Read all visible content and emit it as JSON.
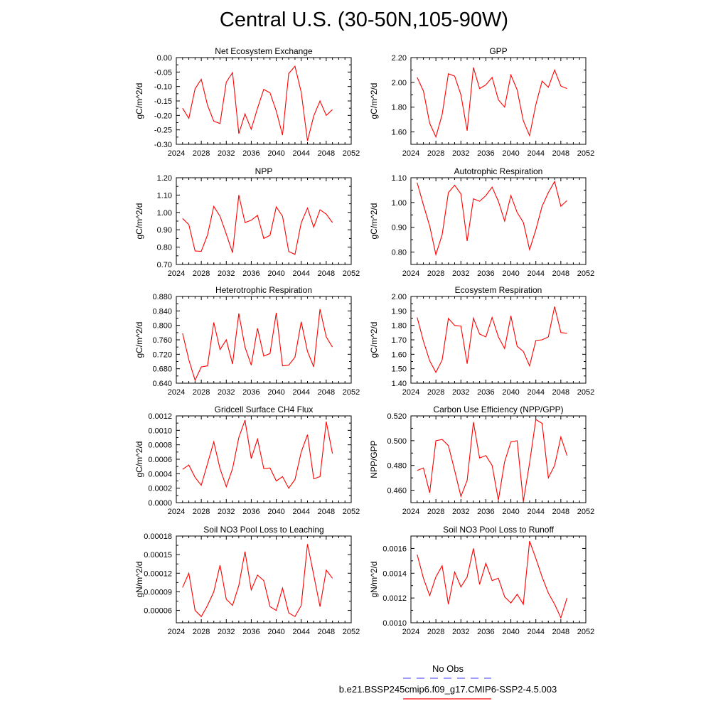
{
  "title": "Central U.S. (30-50N,105-90W)",
  "chart_data": [
    {
      "type": "line",
      "title": "Net Ecosystem Exchange",
      "ylabel": "gC/m^2/d",
      "xlim": [
        2024,
        2052
      ],
      "xticks": [
        2024,
        2028,
        2032,
        2036,
        2040,
        2044,
        2048,
        2052
      ],
      "ylim": [
        -0.3,
        0.0
      ],
      "yticks": [
        0.0,
        -0.05,
        -0.1,
        -0.15,
        -0.2,
        -0.25,
        -0.3
      ],
      "ytick_labels": [
        "0.00",
        "-0.05",
        "-0.10",
        "-0.15",
        "-0.20",
        "-0.25",
        "-0.30"
      ],
      "x": [
        2025,
        2026,
        2027,
        2028,
        2029,
        2030,
        2031,
        2032,
        2033,
        2034,
        2035,
        2036,
        2037,
        2038,
        2039,
        2040,
        2041,
        2042,
        2043,
        2044,
        2045,
        2046,
        2047,
        2048,
        2049
      ],
      "series": [
        {
          "color": "#ff0000",
          "values": [
            -0.175,
            -0.21,
            -0.108,
            -0.075,
            -0.165,
            -0.22,
            -0.228,
            -0.085,
            -0.052,
            -0.263,
            -0.195,
            -0.248,
            -0.175,
            -0.11,
            -0.122,
            -0.185,
            -0.268,
            -0.055,
            -0.03,
            -0.12,
            -0.288,
            -0.202,
            -0.15,
            -0.2,
            -0.18
          ]
        }
      ]
    },
    {
      "type": "line",
      "title": "GPP",
      "ylabel": "gC/m^2/d",
      "xlim": [
        2024,
        2052
      ],
      "xticks": [
        2024,
        2028,
        2032,
        2036,
        2040,
        2044,
        2048,
        2052
      ],
      "ylim": [
        1.5,
        2.2
      ],
      "yticks": [
        2.2,
        2.0,
        1.8,
        1.6
      ],
      "ytick_labels": [
        "2.20",
        "2.00",
        "1.80",
        "1.60"
      ],
      "x": [
        2025,
        2026,
        2027,
        2028,
        2029,
        2030,
        2031,
        2032,
        2033,
        2034,
        2035,
        2036,
        2037,
        2038,
        2039,
        2040,
        2041,
        2042,
        2043,
        2044,
        2045,
        2046,
        2047,
        2048,
        2049
      ],
      "series": [
        {
          "color": "#ff0000",
          "values": [
            2.04,
            1.93,
            1.67,
            1.56,
            1.74,
            2.07,
            2.05,
            1.9,
            1.61,
            2.12,
            1.95,
            1.98,
            2.04,
            1.86,
            1.8,
            2.06,
            1.94,
            1.69,
            1.57,
            1.82,
            2.01,
            1.96,
            2.1,
            1.97,
            1.95
          ]
        }
      ]
    },
    {
      "type": "line",
      "title": "NPP",
      "ylabel": "gC/m^2/d",
      "xlim": [
        2024,
        2052
      ],
      "xticks": [
        2024,
        2028,
        2032,
        2036,
        2040,
        2044,
        2048,
        2052
      ],
      "ylim": [
        0.7,
        1.2
      ],
      "yticks": [
        1.2,
        1.1,
        1.0,
        0.9,
        0.8,
        0.7
      ],
      "ytick_labels": [
        "1.20",
        "1.10",
        "1.00",
        "0.90",
        "0.80",
        "0.70"
      ],
      "x": [
        2025,
        2026,
        2027,
        2028,
        2029,
        2030,
        2031,
        2032,
        2033,
        2034,
        2035,
        2036,
        2037,
        2038,
        2039,
        2040,
        2041,
        2042,
        2043,
        2044,
        2045,
        2046,
        2047,
        2048,
        2049
      ],
      "series": [
        {
          "color": "#ff0000",
          "values": [
            0.965,
            0.93,
            0.778,
            0.776,
            0.87,
            1.035,
            0.978,
            0.875,
            0.768,
            1.1,
            0.942,
            0.955,
            0.983,
            0.85,
            0.868,
            1.032,
            0.978,
            0.775,
            0.758,
            0.94,
            1.025,
            0.915,
            1.015,
            0.99,
            0.942
          ]
        }
      ]
    },
    {
      "type": "line",
      "title": "Autotrophic Respiration",
      "ylabel": "gC/m^2/d",
      "xlim": [
        2024,
        2052
      ],
      "xticks": [
        2024,
        2028,
        2032,
        2036,
        2040,
        2044,
        2048,
        2052
      ],
      "ylim": [
        0.75,
        1.1
      ],
      "yticks": [
        1.1,
        1.0,
        0.9,
        0.8
      ],
      "ytick_labels": [
        "1.10",
        "1.00",
        "0.90",
        "0.80"
      ],
      "x": [
        2025,
        2026,
        2027,
        2028,
        2029,
        2030,
        2031,
        2032,
        2033,
        2034,
        2035,
        2036,
        2037,
        2038,
        2039,
        2040,
        2041,
        2042,
        2043,
        2044,
        2045,
        2046,
        2047,
        2048,
        2049
      ],
      "series": [
        {
          "color": "#ff0000",
          "values": [
            1.08,
            0.99,
            0.905,
            0.79,
            0.87,
            1.04,
            1.07,
            1.035,
            0.845,
            1.015,
            1.005,
            1.028,
            1.062,
            1.005,
            0.925,
            1.028,
            0.96,
            0.92,
            0.81,
            0.89,
            0.985,
            1.04,
            1.085,
            0.985,
            1.008
          ]
        }
      ]
    },
    {
      "type": "line",
      "title": "Heterotrophic Respiration",
      "ylabel": "gC/m^2/d",
      "xlim": [
        2024,
        2052
      ],
      "xticks": [
        2024,
        2028,
        2032,
        2036,
        2040,
        2044,
        2048,
        2052
      ],
      "ylim": [
        0.64,
        0.88
      ],
      "yticks": [
        0.88,
        0.84,
        0.8,
        0.76,
        0.72,
        0.68,
        0.64
      ],
      "ytick_labels": [
        "0.880",
        "0.840",
        "0.800",
        "0.760",
        "0.720",
        "0.680",
        "0.640"
      ],
      "x": [
        2025,
        2026,
        2027,
        2028,
        2029,
        2030,
        2031,
        2032,
        2033,
        2034,
        2035,
        2036,
        2037,
        2038,
        2039,
        2040,
        2041,
        2042,
        2043,
        2044,
        2045,
        2046,
        2047,
        2048,
        2049
      ],
      "series": [
        {
          "color": "#ff0000",
          "values": [
            0.778,
            0.705,
            0.648,
            0.685,
            0.688,
            0.808,
            0.733,
            0.76,
            0.693,
            0.833,
            0.74,
            0.69,
            0.792,
            0.715,
            0.722,
            0.835,
            0.688,
            0.69,
            0.712,
            0.81,
            0.728,
            0.685,
            0.845,
            0.768,
            0.74
          ]
        }
      ]
    },
    {
      "type": "line",
      "title": "Ecosystem Respiration",
      "ylabel": "gC/m^2/d",
      "xlim": [
        2024,
        2052
      ],
      "xticks": [
        2024,
        2028,
        2032,
        2036,
        2040,
        2044,
        2048,
        2052
      ],
      "ylim": [
        1.4,
        2.0
      ],
      "yticks": [
        2.0,
        1.9,
        1.8,
        1.7,
        1.6,
        1.5,
        1.4
      ],
      "ytick_labels": [
        "2.00",
        "1.90",
        "1.80",
        "1.70",
        "1.60",
        "1.50",
        "1.40"
      ],
      "x": [
        2025,
        2026,
        2027,
        2028,
        2029,
        2030,
        2031,
        2032,
        2033,
        2034,
        2035,
        2036,
        2037,
        2038,
        2039,
        2040,
        2041,
        2042,
        2043,
        2044,
        2045,
        2046,
        2047,
        2048,
        2049
      ],
      "series": [
        {
          "color": "#ff0000",
          "values": [
            1.855,
            1.69,
            1.555,
            1.475,
            1.56,
            1.848,
            1.8,
            1.795,
            1.535,
            1.85,
            1.74,
            1.72,
            1.855,
            1.72,
            1.64,
            1.865,
            1.655,
            1.62,
            1.52,
            1.695,
            1.7,
            1.72,
            1.93,
            1.75,
            1.745
          ]
        }
      ]
    },
    {
      "type": "line",
      "title": "Gridcell Surface CH4 Flux",
      "ylabel": "gC/m^2/d",
      "xlim": [
        2024,
        2052
      ],
      "xticks": [
        2024,
        2028,
        2032,
        2036,
        2040,
        2044,
        2048,
        2052
      ],
      "ylim": [
        0.0,
        0.0012
      ],
      "yticks": [
        0.0012,
        0.001,
        0.0008,
        0.0006,
        0.0004,
        0.0002,
        0.0
      ],
      "ytick_labels": [
        "0.0012",
        "0.0010",
        "0.0008",
        "0.0006",
        "0.0004",
        "0.0002",
        "0.0000"
      ],
      "x": [
        2025,
        2026,
        2027,
        2028,
        2029,
        2030,
        2031,
        2032,
        2033,
        2034,
        2035,
        2036,
        2037,
        2038,
        2039,
        2040,
        2041,
        2042,
        2043,
        2044,
        2045,
        2046,
        2047,
        2048,
        2049
      ],
      "series": [
        {
          "color": "#ff0000",
          "values": [
            0.00046,
            0.00052,
            0.00035,
            0.00024,
            0.00054,
            0.00084,
            0.00047,
            0.00022,
            0.00047,
            0.0009,
            0.00114,
            0.00061,
            0.00088,
            0.00047,
            0.00048,
            0.0003,
            0.00036,
            0.0002,
            0.00032,
            0.0007,
            0.00094,
            0.00033,
            0.00036,
            0.00112,
            0.00068
          ]
        }
      ]
    },
    {
      "type": "line",
      "title": "Carbon Use Efficiency (NPP/GPP)",
      "ylabel": "NPP/GPP",
      "xlim": [
        2024,
        2052
      ],
      "xticks": [
        2024,
        2028,
        2032,
        2036,
        2040,
        2044,
        2048,
        2052
      ],
      "ylim": [
        0.45,
        0.52
      ],
      "yticks": [
        0.52,
        0.5,
        0.48,
        0.46
      ],
      "ytick_labels": [
        "0.520",
        "0.500",
        "0.480",
        "0.460"
      ],
      "x": [
        2025,
        2026,
        2027,
        2028,
        2029,
        2030,
        2031,
        2032,
        2033,
        2034,
        2035,
        2036,
        2037,
        2038,
        2039,
        2040,
        2041,
        2042,
        2043,
        2044,
        2045,
        2046,
        2047,
        2048,
        2049
      ],
      "series": [
        {
          "color": "#ff0000",
          "values": [
            0.476,
            0.478,
            0.458,
            0.5,
            0.501,
            0.496,
            0.476,
            0.455,
            0.468,
            0.515,
            0.486,
            0.488,
            0.48,
            0.452,
            0.483,
            0.499,
            0.5,
            0.451,
            0.482,
            0.517,
            0.514,
            0.47,
            0.48,
            0.503,
            0.488
          ]
        }
      ]
    },
    {
      "type": "line",
      "title": "Soil NO3 Pool Loss to Leaching",
      "ylabel": "gN/m^2/d",
      "xlim": [
        2024,
        2052
      ],
      "xticks": [
        2024,
        2028,
        2032,
        2036,
        2040,
        2044,
        2048,
        2052
      ],
      "ylim": [
        4e-05,
        0.00018
      ],
      "yticks": [
        0.00018,
        0.00015,
        0.00012,
        9e-05,
        6e-05
      ],
      "ytick_labels": [
        "0.00018",
        "0.00015",
        "0.00012",
        "0.00009",
        "0.00006"
      ],
      "x": [
        2025,
        2026,
        2027,
        2028,
        2029,
        2030,
        2031,
        2032,
        2033,
        2034,
        2035,
        2036,
        2037,
        2038,
        2039,
        2040,
        2041,
        2042,
        2043,
        2044,
        2045,
        2046,
        2047,
        2048,
        2049
      ],
      "series": [
        {
          "color": "#ff0000",
          "values": [
            9.7e-05,
            0.00012,
            6e-05,
            5e-05,
            6.8e-05,
            9e-05,
            0.000133,
            7.8e-05,
            6.8e-05,
            0.0001,
            0.000155,
            9.3e-05,
            0.000117,
            0.000108,
            6.6e-05,
            6e-05,
            9.6e-05,
            5.6e-05,
            5e-05,
            6.8e-05,
            0.000167,
            0.000117,
            6.6e-05,
            0.000125,
            0.000112
          ]
        }
      ]
    },
    {
      "type": "line",
      "title": "Soil NO3 Pool Loss to Runoff",
      "ylabel": "gN/m^2/d",
      "xlim": [
        2024,
        2052
      ],
      "xticks": [
        2024,
        2028,
        2032,
        2036,
        2040,
        2044,
        2048,
        2052
      ],
      "ylim": [
        0.001,
        0.0017
      ],
      "yticks": [
        0.0016,
        0.0014,
        0.0012,
        0.001
      ],
      "ytick_labels": [
        "0.0016",
        "0.0014",
        "0.0012",
        "0.0010"
      ],
      "x": [
        2025,
        2026,
        2027,
        2028,
        2029,
        2030,
        2031,
        2032,
        2033,
        2034,
        2035,
        2036,
        2037,
        2038,
        2039,
        2040,
        2041,
        2042,
        2043,
        2044,
        2045,
        2046,
        2047,
        2048,
        2049
      ],
      "series": [
        {
          "color": "#ff0000",
          "values": [
            0.00155,
            0.00136,
            0.00122,
            0.00137,
            0.00146,
            0.00115,
            0.00141,
            0.00129,
            0.00137,
            0.0016,
            0.00131,
            0.00148,
            0.00134,
            0.00136,
            0.00121,
            0.00116,
            0.00123,
            0.00115,
            0.00166,
            0.00152,
            0.00137,
            0.00124,
            0.00115,
            0.00104,
            0.0012
          ]
        }
      ]
    }
  ],
  "legend": {
    "items": [
      {
        "label": "No Obs",
        "color": "#6060ff",
        "style": "dashed"
      },
      {
        "label": "b.e21.BSSP245cmip6.f09_g17.CMIP6-SSP2-4.5.003",
        "color": "#ff0000",
        "style": "solid"
      }
    ]
  }
}
